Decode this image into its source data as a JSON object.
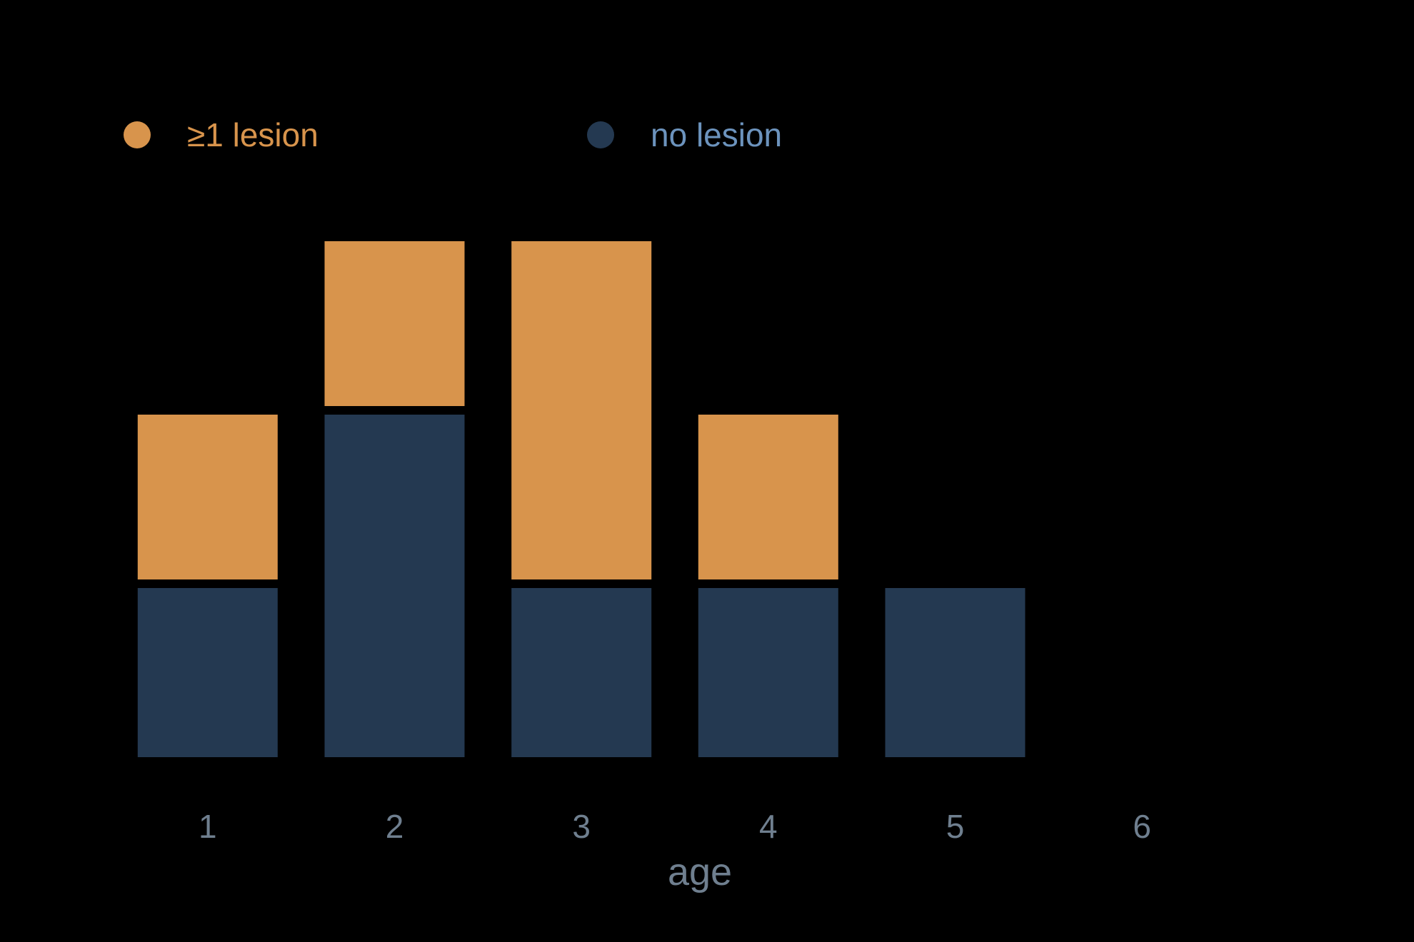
{
  "chart_data": {
    "type": "bar",
    "stacked": true,
    "categories": [
      "1",
      "2",
      "3",
      "4",
      "5",
      "6"
    ],
    "series": [
      {
        "name": "no lesion",
        "values": [
          1,
          2,
          1,
          1,
          1,
          0
        ],
        "color": "#243951",
        "label_color": "#6c93bd"
      },
      {
        "name": "≥1 lesion",
        "values": [
          1,
          1,
          2,
          1,
          0,
          0
        ],
        "color": "#d8944c",
        "label_color": "#d8944c"
      }
    ],
    "xlabel": "age",
    "ylabel": "",
    "ylim": [
      0,
      3
    ],
    "legend_position": "top",
    "legend_order": [
      "≥1 lesion",
      "no lesion"
    ],
    "grid": false,
    "background": "#000000",
    "text_color": "#6f7f8f"
  }
}
